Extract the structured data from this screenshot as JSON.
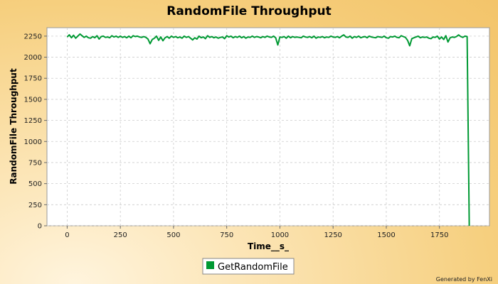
{
  "chart_data": {
    "type": "line",
    "title": "RandomFile Throughput",
    "xlabel": "Time__s_",
    "ylabel": "RandomFile Throughput",
    "xlim": [
      -95,
      1985
    ],
    "ylim": [
      0,
      2350
    ],
    "xticks": [
      0,
      250,
      500,
      750,
      1000,
      1250,
      1500,
      1750
    ],
    "xtick_labels": [
      "0",
      "250",
      "500",
      "750",
      "1000",
      "1250",
      "1500",
      "1750"
    ],
    "yticks": [
      0,
      250,
      500,
      750,
      1000,
      1250,
      1500,
      1750,
      2000,
      2250
    ],
    "ytick_labels": [
      "0",
      "250",
      "500",
      "750",
      "1000",
      "1250",
      "1500",
      "1750",
      "2000",
      "2250"
    ],
    "grid": true,
    "legend_position": "bottom-center",
    "footer": "Generated by FenXi",
    "series": [
      {
        "name": "GetRandomFile",
        "color": "#009933",
        "x": [
          0,
          10,
          20,
          30,
          40,
          50,
          60,
          70,
          80,
          90,
          100,
          110,
          120,
          130,
          140,
          150,
          160,
          170,
          180,
          190,
          200,
          210,
          220,
          230,
          240,
          250,
          260,
          270,
          280,
          290,
          300,
          310,
          320,
          330,
          340,
          350,
          360,
          370,
          380,
          390,
          400,
          410,
          420,
          430,
          440,
          450,
          460,
          470,
          480,
          490,
          500,
          510,
          520,
          530,
          540,
          550,
          560,
          570,
          580,
          590,
          600,
          610,
          620,
          630,
          640,
          650,
          660,
          670,
          680,
          690,
          700,
          710,
          720,
          730,
          740,
          750,
          760,
          770,
          780,
          790,
          800,
          810,
          820,
          830,
          840,
          850,
          860,
          870,
          880,
          890,
          900,
          910,
          920,
          930,
          940,
          950,
          960,
          970,
          980,
          990,
          1000,
          1010,
          1020,
          1030,
          1040,
          1050,
          1060,
          1070,
          1080,
          1090,
          1100,
          1110,
          1120,
          1130,
          1140,
          1150,
          1160,
          1170,
          1180,
          1190,
          1200,
          1210,
          1220,
          1230,
          1240,
          1250,
          1260,
          1270,
          1280,
          1290,
          1300,
          1310,
          1320,
          1330,
          1340,
          1350,
          1360,
          1370,
          1380,
          1390,
          1400,
          1410,
          1420,
          1430,
          1440,
          1450,
          1460,
          1470,
          1480,
          1490,
          1500,
          1510,
          1520,
          1530,
          1540,
          1550,
          1560,
          1570,
          1580,
          1590,
          1600,
          1610,
          1620,
          1630,
          1640,
          1650,
          1660,
          1670,
          1680,
          1690,
          1700,
          1710,
          1720,
          1730,
          1740,
          1750,
          1760,
          1770,
          1780,
          1790,
          1800,
          1810,
          1820,
          1830,
          1840,
          1850,
          1860,
          1870,
          1880,
          1890
        ],
        "y": [
          2240,
          2265,
          2230,
          2260,
          2225,
          2250,
          2275,
          2255,
          2235,
          2250,
          2230,
          2225,
          2245,
          2230,
          2255,
          2215,
          2245,
          2250,
          2235,
          2240,
          2230,
          2255,
          2240,
          2250,
          2235,
          2250,
          2235,
          2245,
          2230,
          2250,
          2230,
          2255,
          2245,
          2250,
          2240,
          2235,
          2245,
          2235,
          2215,
          2160,
          2210,
          2225,
          2250,
          2200,
          2240,
          2195,
          2230,
          2245,
          2225,
          2250,
          2235,
          2245,
          2230,
          2240,
          2225,
          2250,
          2235,
          2245,
          2225,
          2205,
          2230,
          2215,
          2250,
          2230,
          2240,
          2220,
          2255,
          2235,
          2245,
          2230,
          2240,
          2225,
          2235,
          2240,
          2220,
          2255,
          2240,
          2250,
          2230,
          2245,
          2235,
          2250,
          2230,
          2245,
          2225,
          2240,
          2235,
          2250,
          2235,
          2245,
          2240,
          2230,
          2245,
          2235,
          2250,
          2240,
          2235,
          2250,
          2230,
          2145,
          2240,
          2235,
          2245,
          2225,
          2250,
          2230,
          2245,
          2235,
          2240,
          2235,
          2230,
          2250,
          2240,
          2235,
          2245,
          2230,
          2250,
          2225,
          2240,
          2235,
          2245,
          2230,
          2240,
          2235,
          2250,
          2240,
          2235,
          2245,
          2230,
          2250,
          2265,
          2240,
          2235,
          2250,
          2225,
          2245,
          2235,
          2250,
          2230,
          2240,
          2245,
          2230,
          2250,
          2240,
          2235,
          2230,
          2245,
          2240,
          2235,
          2250,
          2230,
          2225,
          2245,
          2240,
          2250,
          2235,
          2230,
          2255,
          2245,
          2235,
          2200,
          2135,
          2220,
          2230,
          2240,
          2250,
          2230,
          2240,
          2235,
          2240,
          2225,
          2220,
          2240,
          2235,
          2250,
          2215,
          2240,
          2210,
          2255,
          2180,
          2230,
          2240,
          2235,
          2245,
          2265,
          2245,
          2235,
          2250,
          2245,
          0
        ]
      }
    ]
  }
}
